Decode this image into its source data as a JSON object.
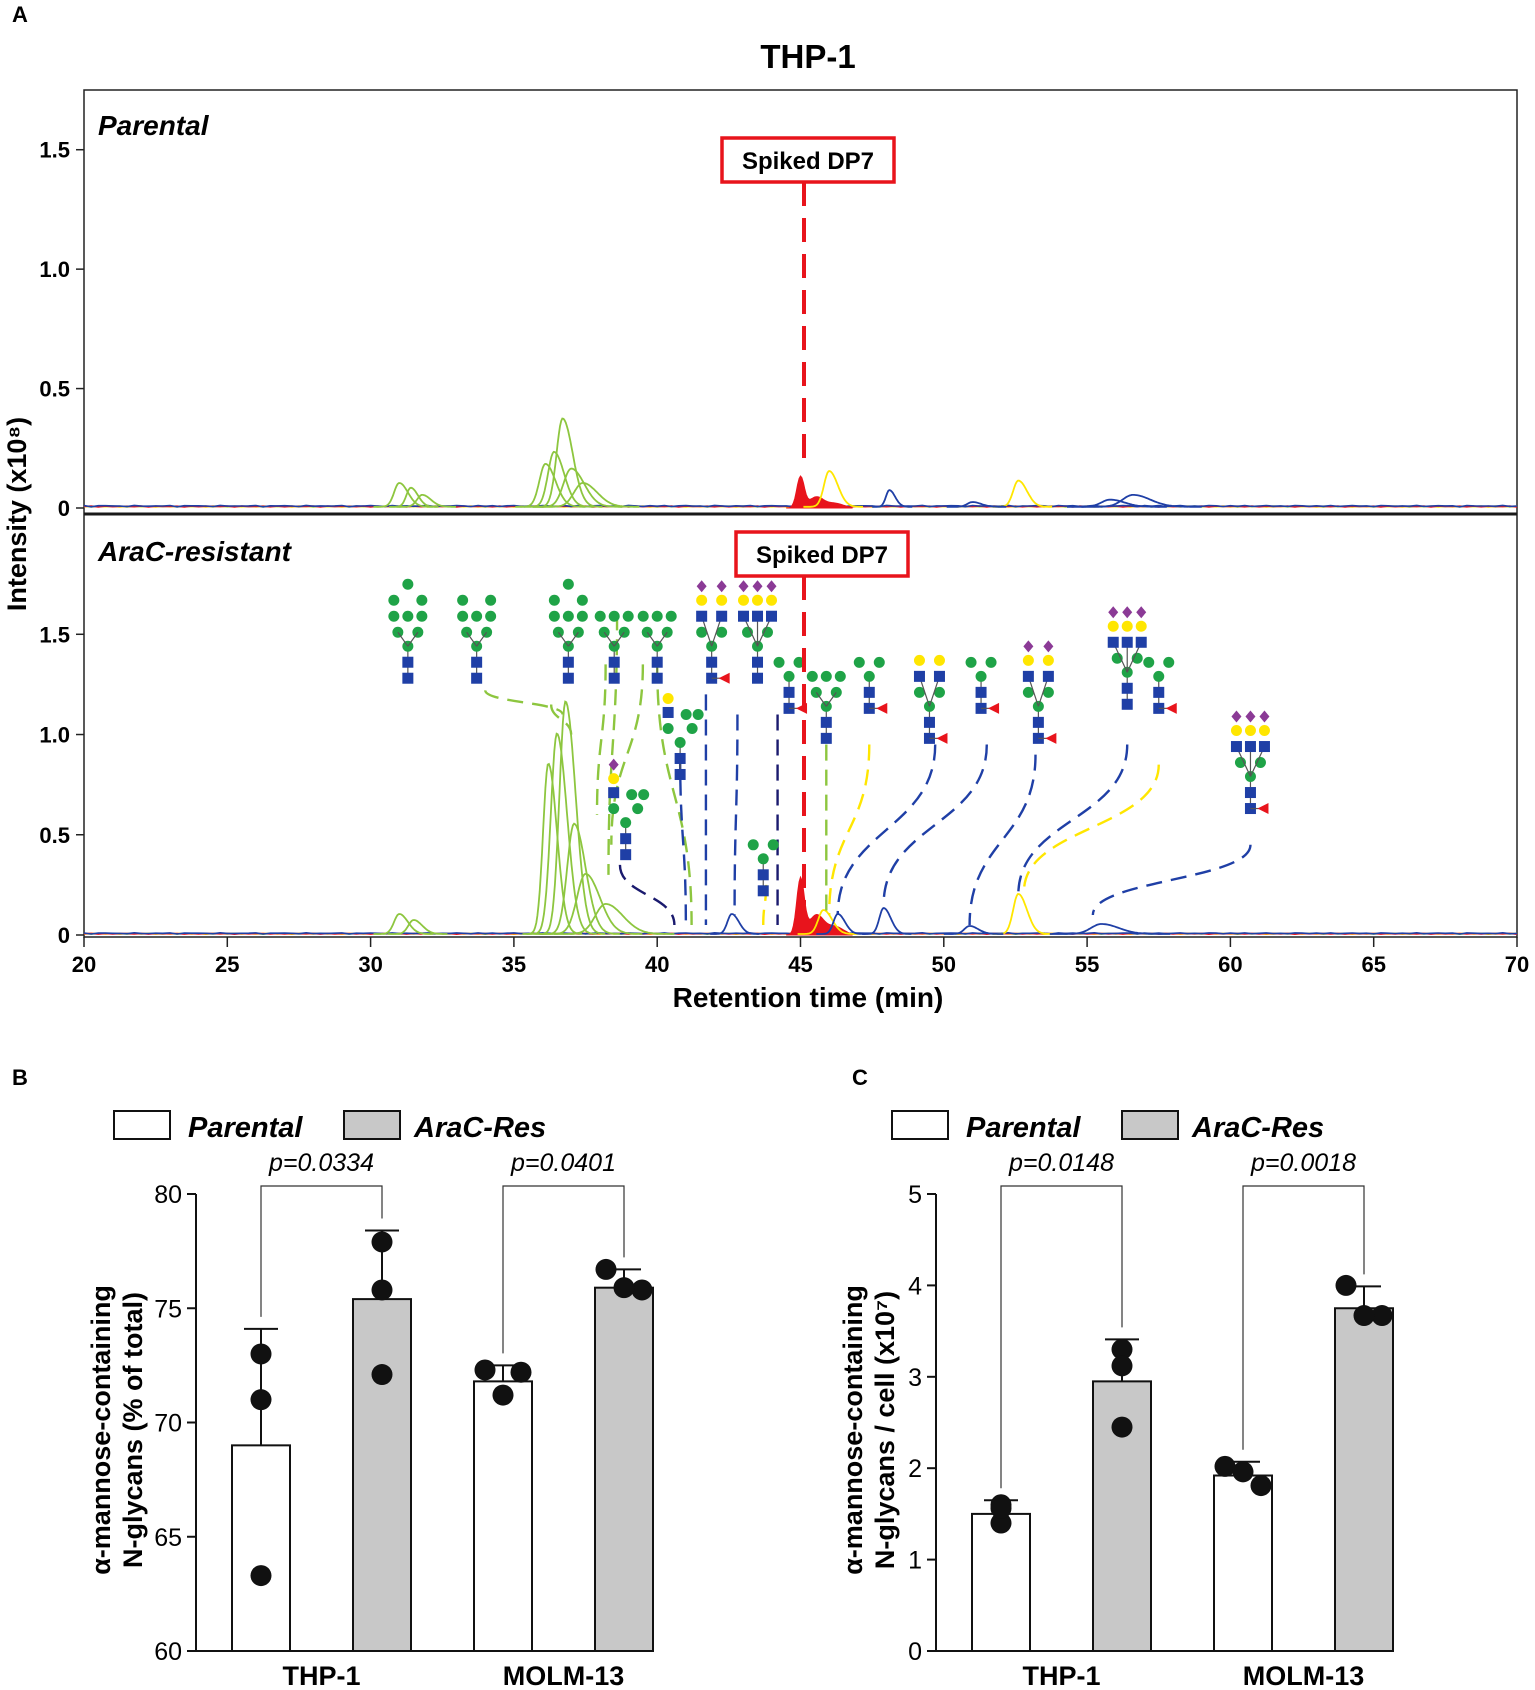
{
  "chart_data": [
    {
      "panel": "A",
      "type": "line",
      "title": "THP-1",
      "xlabel": "Retention time (min)",
      "ylabel": "Intensity (x10⁸)",
      "xlim": [
        20,
        70
      ],
      "x_ticks": [
        20,
        25,
        30,
        35,
        40,
        45,
        50,
        55,
        60,
        65,
        70
      ],
      "subpanels": [
        {
          "name": "Parental",
          "ylim": [
            0,
            1.75
          ],
          "y_ticks": [
            "0",
            "0.5",
            "1.0",
            "1.5"
          ],
          "annotation": "Spiked DP7",
          "annotation_x": 45.0,
          "spike": {
            "center": 45.0,
            "peak": 0.13,
            "color": "#e8141c"
          },
          "peaks": [
            {
              "x": 31.0,
              "h": 0.1,
              "w": 0.3,
              "color": "#8dc63f"
            },
            {
              "x": 31.4,
              "h": 0.08,
              "w": 0.25,
              "color": "#8dc63f"
            },
            {
              "x": 31.8,
              "h": 0.05,
              "w": 0.3,
              "color": "#8dc63f"
            },
            {
              "x": 36.1,
              "h": 0.18,
              "w": 0.35,
              "color": "#8dc63f"
            },
            {
              "x": 36.4,
              "h": 0.23,
              "w": 0.35,
              "color": "#8dc63f"
            },
            {
              "x": 36.7,
              "h": 0.37,
              "w": 0.35,
              "color": "#8dc63f"
            },
            {
              "x": 37.0,
              "h": 0.16,
              "w": 0.45,
              "color": "#8dc63f"
            },
            {
              "x": 37.4,
              "h": 0.1,
              "w": 0.5,
              "color": "#8dc63f"
            },
            {
              "x": 46.0,
              "h": 0.15,
              "w": 0.3,
              "color": "#ffe600"
            },
            {
              "x": 52.6,
              "h": 0.11,
              "w": 0.3,
              "color": "#ffe600"
            },
            {
              "x": 48.1,
              "h": 0.07,
              "w": 0.2,
              "color": "#1f3fa6"
            },
            {
              "x": 51.0,
              "h": 0.02,
              "w": 0.3,
              "color": "#1f3fa6"
            },
            {
              "x": 55.8,
              "h": 0.03,
              "w": 0.5,
              "color": "#1f3fa6"
            },
            {
              "x": 56.6,
              "h": 0.05,
              "w": 0.6,
              "color": "#1f3fa6"
            }
          ]
        },
        {
          "name": "AraC-resistant",
          "ylim": [
            0,
            2.1
          ],
          "y_ticks": [
            "0",
            "0.5",
            "1.0",
            "1.5"
          ],
          "annotation": "Spiked DP7",
          "annotation_x": 45.0,
          "spike": {
            "center": 45.0,
            "peak": 0.28,
            "color": "#e8141c"
          },
          "peaks": [
            {
              "x": 31.0,
              "h": 0.1,
              "w": 0.3,
              "color": "#8dc63f"
            },
            {
              "x": 31.5,
              "h": 0.07,
              "w": 0.3,
              "color": "#8dc63f"
            },
            {
              "x": 36.2,
              "h": 0.85,
              "w": 0.3,
              "color": "#8dc63f"
            },
            {
              "x": 36.5,
              "h": 1.0,
              "w": 0.35,
              "color": "#8dc63f"
            },
            {
              "x": 36.8,
              "h": 1.16,
              "w": 0.35,
              "color": "#8dc63f"
            },
            {
              "x": 37.1,
              "h": 0.55,
              "w": 0.4,
              "color": "#8dc63f"
            },
            {
              "x": 37.5,
              "h": 0.3,
              "w": 0.5,
              "color": "#8dc63f"
            },
            {
              "x": 38.2,
              "h": 0.15,
              "w": 0.6,
              "color": "#8dc63f"
            },
            {
              "x": 45.8,
              "h": 0.12,
              "w": 0.3,
              "color": "#ffe600"
            },
            {
              "x": 52.6,
              "h": 0.2,
              "w": 0.3,
              "color": "#ffe600"
            },
            {
              "x": 42.6,
              "h": 0.1,
              "w": 0.25,
              "color": "#1f3fa6"
            },
            {
              "x": 46.3,
              "h": 0.1,
              "w": 0.25,
              "color": "#1f3fa6"
            },
            {
              "x": 47.9,
              "h": 0.13,
              "w": 0.25,
              "color": "#1f3fa6"
            },
            {
              "x": 50.9,
              "h": 0.04,
              "w": 0.3,
              "color": "#1f3fa6"
            },
            {
              "x": 55.5,
              "h": 0.05,
              "w": 0.6,
              "color": "#1f3fa6"
            }
          ],
          "connectors": [
            {
              "from": [
                34.0,
                1.22
              ],
              "to": [
                36.7,
                1.1
              ],
              "color": "#8dc63f"
            },
            {
              "from": [
                36.3,
                1.15
              ],
              "to": [
                37.0,
                1.0
              ],
              "color": "#8dc63f"
            },
            {
              "from": [
                38.2,
                1.35
              ],
              "to": [
                37.9,
                0.6
              ],
              "color": "#8dc63f"
            },
            {
              "from": [
                39.5,
                1.35
              ],
              "to": [
                38.4,
                0.45
              ],
              "color": "#8dc63f"
            },
            {
              "from": [
                38.6,
                1.6
              ],
              "to": [
                38.3,
                0.3
              ],
              "color": "#8dc63f"
            },
            {
              "from": [
                40.0,
                1.35
              ],
              "to": [
                41.2,
                0.05
              ],
              "color": "#8dc63f"
            },
            {
              "from": [
                40.8,
                0.9
              ],
              "to": [
                41.0,
                0.05
              ],
              "color": "#1f3fa6"
            },
            {
              "from": [
                38.7,
                0.35
              ],
              "to": [
                40.6,
                0.05
              ],
              "color": "#1a1a6e"
            },
            {
              "from": [
                41.7,
                1.2
              ],
              "to": [
                41.7,
                0.05
              ],
              "color": "#1f3fa6"
            },
            {
              "from": [
                42.8,
                1.1
              ],
              "to": [
                42.7,
                0.1
              ],
              "color": "#1f3fa6"
            },
            {
              "from": [
                44.2,
                1.1
              ],
              "to": [
                44.2,
                0.05
              ],
              "color": "#1a1a6e"
            },
            {
              "from": [
                43.8,
                0.25
              ],
              "to": [
                43.7,
                0.05
              ],
              "color": "#ffe600"
            },
            {
              "from": [
                45.9,
                0.95
              ],
              "to": [
                45.9,
                0.1
              ],
              "color": "#8dc63f"
            },
            {
              "from": [
                47.4,
                0.95
              ],
              "to": [
                46.0,
                0.1
              ],
              "color": "#ffe600"
            },
            {
              "from": [
                49.7,
                0.95
              ],
              "to": [
                46.3,
                0.1
              ],
              "color": "#1f3fa6"
            },
            {
              "from": [
                51.5,
                0.95
              ],
              "to": [
                47.9,
                0.15
              ],
              "color": "#1f3fa6"
            },
            {
              "from": [
                53.2,
                0.9
              ],
              "to": [
                50.9,
                0.05
              ],
              "color": "#1f3fa6"
            },
            {
              "from": [
                56.4,
                0.95
              ],
              "to": [
                52.6,
                0.2
              ],
              "color": "#1f3fa6"
            },
            {
              "from": [
                57.5,
                0.85
              ],
              "to": [
                52.8,
                0.22
              ],
              "color": "#ffe600"
            },
            {
              "from": [
                60.7,
                0.45
              ],
              "to": [
                55.2,
                0.1
              ],
              "color": "#1f3fa6"
            }
          ]
        }
      ],
      "glycans": [
        {
          "x": 31.3,
          "y": 1.63,
          "type": "man9"
        },
        {
          "x": 33.7,
          "y": 1.63,
          "type": "man8"
        },
        {
          "x": 36.9,
          "y": 1.63,
          "type": "man9"
        },
        {
          "x": 38.5,
          "y": 1.63,
          "type": "man7"
        },
        {
          "x": 40.0,
          "y": 1.63,
          "type": "man6"
        },
        {
          "x": 41.9,
          "y": 1.63,
          "type": "bi-sialofuc"
        },
        {
          "x": 43.5,
          "y": 1.63,
          "type": "tri-sialo"
        },
        {
          "x": 44.6,
          "y": 1.33,
          "type": "core-fuc"
        },
        {
          "x": 40.8,
          "y": 1.1,
          "type": "hybrid"
        },
        {
          "x": 38.9,
          "y": 0.7,
          "type": "hybrid-sialo"
        },
        {
          "x": 43.7,
          "y": 0.42,
          "type": "man3"
        },
        {
          "x": 45.9,
          "y": 1.33,
          "type": "man5"
        },
        {
          "x": 47.4,
          "y": 1.33,
          "type": "core-fuc"
        },
        {
          "x": 49.5,
          "y": 1.33,
          "type": "bi-galfuc"
        },
        {
          "x": 51.3,
          "y": 1.33,
          "type": "core-fuc"
        },
        {
          "x": 53.3,
          "y": 1.33,
          "type": "bi-sialofuc"
        },
        {
          "x": 56.4,
          "y": 1.5,
          "type": "tri-sialo"
        },
        {
          "x": 57.5,
          "y": 1.33,
          "type": "core-fuc"
        },
        {
          "x": 60.7,
          "y": 0.98,
          "type": "tri-sialofuc"
        }
      ]
    },
    {
      "panel": "B",
      "type": "bar",
      "categories": [
        "THP-1",
        "MOLM-13"
      ],
      "series": [
        {
          "name": "Parental",
          "color": "#ffffff",
          "values": [
            69.0,
            71.8
          ],
          "errors": [
            5.1,
            0.7
          ],
          "points": [
            [
              73.0,
              71.0,
              63.3
            ],
            [
              72.3,
              72.2,
              71.2
            ]
          ]
        },
        {
          "name": "AraC-Res",
          "color": "#c8c8c8",
          "values": [
            75.4,
            75.9
          ],
          "errors": [
            3.0,
            0.8
          ],
          "points": [
            [
              77.9,
              75.8,
              72.1
            ],
            [
              76.7,
              75.8,
              75.9
            ]
          ]
        }
      ],
      "ylabel": "α-mannose-containing\nN-glycans (% of total)",
      "ylim": [
        60,
        80
      ],
      "y_ticks": [
        60,
        65,
        70,
        75,
        80
      ],
      "pvalues": [
        "p=0.0334",
        "p=0.0401"
      ]
    },
    {
      "panel": "C",
      "type": "bar",
      "categories": [
        "THP-1",
        "MOLM-13"
      ],
      "series": [
        {
          "name": "Parental",
          "color": "#ffffff",
          "values": [
            1.5,
            1.92
          ],
          "errors": [
            0.15,
            0.15
          ],
          "points": [
            [
              1.6,
              1.4,
              1.56
            ],
            [
              2.02,
              1.81,
              1.96
            ]
          ]
        },
        {
          "name": "AraC-Res",
          "color": "#c8c8c8",
          "values": [
            2.95,
            3.75
          ],
          "errors": [
            0.46,
            0.24
          ],
          "points": [
            [
              3.3,
              3.12,
              2.45
            ],
            [
              4.0,
              3.67,
              3.67
            ]
          ]
        }
      ],
      "ylabel": "α-mannose-containing\nN-glycans / cell (x10⁷)",
      "ylim": [
        0,
        5
      ],
      "y_ticks": [
        0,
        1,
        2,
        3,
        4,
        5
      ],
      "pvalues": [
        "p=0.0148",
        "p=0.0018"
      ]
    }
  ],
  "labels": {
    "panel_a": "A",
    "panel_b": "B",
    "panel_c": "C",
    "title": "THP-1",
    "parental": "Parental",
    "resistant": "AraC-resistant",
    "spiked": "Spiked DP7",
    "ylabel_a": "Intensity (x10⁸)",
    "xlabel_a": "Retention time (min)",
    "legend_parental": "Parental",
    "legend_res": "AraC-Res",
    "ylabel_b_1": "α-mannose-containing",
    "ylabel_b_2": "N-glycans (% of total)",
    "ylabel_c_1": "α-mannose-containing",
    "ylabel_c_2": "N-glycans / cell (x10⁷)"
  }
}
